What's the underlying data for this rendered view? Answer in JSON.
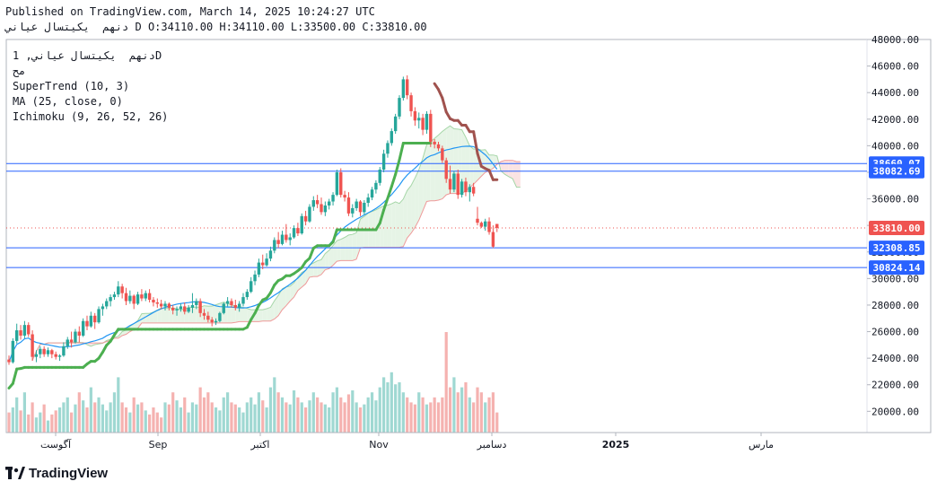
{
  "header": {
    "published": "Published on TradingView.com, March 14, 2025 10:24:27 UTC",
    "ohlc_line": "دنهم  يكيتسال عياني D O:34110.00 H:34110.00 L:33500.00 C:33810.00"
  },
  "legend": {
    "symbol_line": "دنهم  يكيتسال عياني, 1D",
    "line2": "مح",
    "supertrend": "SuperTrend (10, 3)",
    "ma": "MA (25, close, 0)",
    "ichimoku": "Ichimoku (9, 26, 52, 26)"
  },
  "footer": {
    "brand": "TradingView"
  },
  "colors": {
    "up": "#26a69a",
    "down": "#ef5350",
    "supertrend_up": "#4caf50",
    "supertrend_down": "#a0524e",
    "ma": "#2196f3",
    "hline": "#2962ff",
    "cloud": "#e6f4e6",
    "cloud_red": "#fbe3e3"
  },
  "chart_data": {
    "type": "candlestick",
    "y_axis": {
      "min": 18400,
      "max": 48000,
      "side": "right",
      "ticks": [
        "48000.00",
        "46000.00",
        "44000.00",
        "42000.00",
        "40000.00",
        "38000.00",
        "36000.00",
        "34000.00",
        "32000.00",
        "30000.00",
        "28000.00",
        "26000.00",
        "24000.00",
        "22000.00",
        "20000.00"
      ]
    },
    "x_axis": {
      "labels": [
        "آگوست",
        "Sep",
        "اکتبر",
        "Nov",
        "دسامبر",
        "2025",
        "مارس"
      ]
    },
    "price_labels": [
      {
        "value": 38660.07,
        "text": "38660.07",
        "style": "blue"
      },
      {
        "value": 38082.69,
        "text": "38082.69",
        "style": "blue"
      },
      {
        "value": 33810.0,
        "text": "33810.00",
        "style": "red"
      },
      {
        "value": 32308.85,
        "text": "32308.85",
        "style": "blue"
      },
      {
        "value": 30824.14,
        "text": "30824.14",
        "style": "blue"
      }
    ],
    "horizontal_lines": [
      38660.07,
      38082.69,
      32308.85,
      30824.14
    ],
    "dotted_line": 33810.0,
    "candles": [
      [
        23900,
        24200,
        23500,
        23700
      ],
      [
        23700,
        25500,
        23600,
        25300
      ],
      [
        25300,
        26600,
        25100,
        26100
      ],
      [
        26100,
        26500,
        25400,
        25700
      ],
      [
        25700,
        26800,
        25500,
        26500
      ],
      [
        26500,
        26700,
        25600,
        25800
      ],
      [
        25800,
        26100,
        23800,
        24100
      ],
      [
        24100,
        24600,
        23700,
        24300
      ],
      [
        24300,
        24900,
        24000,
        24700
      ],
      [
        24700,
        24900,
        24100,
        24300
      ],
      [
        24300,
        24800,
        24100,
        24600
      ],
      [
        24600,
        24700,
        24000,
        24300
      ],
      [
        24300,
        24500,
        23900,
        24100
      ],
      [
        24100,
        24300,
        23800,
        24200
      ],
      [
        24200,
        25200,
        24100,
        24900
      ],
      [
        24900,
        25600,
        24700,
        25400
      ],
      [
        25400,
        26000,
        24800,
        25200
      ],
      [
        25200,
        26200,
        25100,
        26000
      ],
      [
        26000,
        26400,
        25200,
        25700
      ],
      [
        25700,
        27000,
        25600,
        26800
      ],
      [
        26800,
        27200,
        26100,
        26400
      ],
      [
        26400,
        27500,
        26300,
        27200
      ],
      [
        27200,
        27400,
        26200,
        26700
      ],
      [
        26700,
        27900,
        26600,
        27700
      ],
      [
        27700,
        28100,
        27200,
        27900
      ],
      [
        27900,
        28500,
        27700,
        28300
      ],
      [
        28300,
        28800,
        27900,
        28600
      ],
      [
        28600,
        29000,
        28400,
        28800
      ],
      [
        28800,
        29800,
        28600,
        29400
      ],
      [
        29400,
        29600,
        28500,
        28900
      ],
      [
        28900,
        29300,
        28000,
        28300
      ],
      [
        28300,
        29100,
        28100,
        28700
      ],
      [
        28700,
        28800,
        27700,
        28100
      ],
      [
        28100,
        29000,
        28000,
        28800
      ],
      [
        28800,
        29200,
        28300,
        28500
      ],
      [
        28500,
        29100,
        28300,
        28900
      ],
      [
        28900,
        29200,
        28200,
        28400
      ],
      [
        28400,
        28600,
        27900,
        28200
      ],
      [
        28200,
        28500,
        27800,
        28100
      ],
      [
        28100,
        28400,
        27700,
        27900
      ],
      [
        27900,
        28300,
        27600,
        28100
      ],
      [
        28100,
        28200,
        27600,
        27800
      ],
      [
        27800,
        28000,
        27300,
        27600
      ],
      [
        27600,
        27900,
        27200,
        27700
      ],
      [
        27700,
        28100,
        27500,
        27900
      ],
      [
        27900,
        28200,
        27300,
        27500
      ],
      [
        27500,
        28000,
        27400,
        27800
      ],
      [
        27800,
        28900,
        27400,
        28000
      ],
      [
        28000,
        28500,
        27700,
        28300
      ],
      [
        28300,
        28500,
        27100,
        27400
      ],
      [
        27400,
        27700,
        26900,
        27200
      ],
      [
        27200,
        27500,
        26700,
        26900
      ],
      [
        26900,
        27100,
        26400,
        26700
      ],
      [
        26700,
        27000,
        26500,
        26800
      ],
      [
        26800,
        27500,
        26700,
        27400
      ],
      [
        27400,
        28200,
        27300,
        28100
      ],
      [
        28100,
        28600,
        27900,
        28300
      ],
      [
        28300,
        28500,
        27800,
        28000
      ],
      [
        28000,
        28400,
        27600,
        27800
      ],
      [
        27800,
        28300,
        27500,
        28100
      ],
      [
        28100,
        28900,
        27900,
        28600
      ],
      [
        28600,
        29200,
        28400,
        29000
      ],
      [
        29000,
        30100,
        28900,
        29800
      ],
      [
        29800,
        30600,
        29500,
        30300
      ],
      [
        30300,
        31500,
        30100,
        31200
      ],
      [
        31200,
        31800,
        30700,
        31000
      ],
      [
        31000,
        31900,
        30900,
        31500
      ],
      [
        31500,
        32400,
        31300,
        32100
      ],
      [
        32100,
        33100,
        31900,
        32900
      ],
      [
        32900,
        33500,
        32300,
        32600
      ],
      [
        32600,
        33600,
        32500,
        33300
      ],
      [
        33300,
        34100,
        32700,
        32900
      ],
      [
        32900,
        33400,
        32500,
        33100
      ],
      [
        33100,
        34000,
        33000,
        33800
      ],
      [
        33800,
        34200,
        33200,
        33400
      ],
      [
        33400,
        34900,
        33300,
        34700
      ],
      [
        34700,
        35100,
        34000,
        34300
      ],
      [
        34300,
        35600,
        34200,
        35400
      ],
      [
        35400,
        36200,
        35100,
        35900
      ],
      [
        35900,
        36300,
        35300,
        35600
      ],
      [
        35600,
        36100,
        34800,
        35000
      ],
      [
        35000,
        35800,
        34700,
        35500
      ],
      [
        35500,
        36000,
        35200,
        35800
      ],
      [
        35800,
        36500,
        35500,
        36300
      ],
      [
        36300,
        38200,
        36200,
        38000
      ],
      [
        38000,
        38300,
        36100,
        36300
      ],
      [
        36300,
        36600,
        35800,
        36100
      ],
      [
        36100,
        36500,
        34700,
        34900
      ],
      [
        34900,
        35600,
        34600,
        35300
      ],
      [
        35300,
        36000,
        35100,
        35800
      ],
      [
        35800,
        35900,
        34700,
        35000
      ],
      [
        35000,
        35900,
        34800,
        35700
      ],
      [
        35700,
        36400,
        35400,
        36100
      ],
      [
        36100,
        36900,
        35900,
        36700
      ],
      [
        36700,
        37400,
        36400,
        37200
      ],
      [
        37200,
        38400,
        37000,
        38200
      ],
      [
        38200,
        39700,
        38000,
        39400
      ],
      [
        39400,
        40400,
        39100,
        40200
      ],
      [
        40200,
        41300,
        40000,
        41100
      ],
      [
        41100,
        42400,
        40900,
        42200
      ],
      [
        42200,
        43800,
        42000,
        43600
      ],
      [
        43600,
        45200,
        43400,
        45000
      ],
      [
        45000,
        45300,
        43500,
        43800
      ],
      [
        43800,
        44000,
        42200,
        42600
      ],
      [
        42600,
        42900,
        41500,
        41900
      ],
      [
        41900,
        42500,
        41300,
        42100
      ],
      [
        42100,
        42400,
        40800,
        41200
      ],
      [
        41200,
        42600,
        40900,
        42400
      ],
      [
        42400,
        42700,
        39900,
        40300
      ],
      [
        40300,
        40500,
        39800,
        40100
      ],
      [
        40100,
        40300,
        39600,
        39800
      ],
      [
        39800,
        40000,
        38700,
        38900
      ],
      [
        38900,
        39100,
        37200,
        37500
      ],
      [
        37500,
        38500,
        36400,
        36700
      ],
      [
        36700,
        38100,
        36500,
        37900
      ],
      [
        37900,
        38200,
        36000,
        36300
      ],
      [
        36300,
        37500,
        36100,
        37300
      ],
      [
        37300,
        37600,
        36200,
        36500
      ],
      [
        36500,
        37100,
        35800,
        36900
      ],
      [
        36900,
        37200,
        36200,
        36400
      ],
      [
        34500,
        35400,
        34000,
        34200
      ],
      [
        34200,
        34300,
        33800,
        33900
      ],
      [
        33900,
        34500,
        33600,
        34300
      ],
      [
        34300,
        34600,
        33300,
        33500
      ],
      [
        33500,
        34000,
        32300,
        32400
      ],
      [
        34110,
        34110,
        33500,
        33810
      ]
    ],
    "volumes": [
      0.2,
      0.25,
      0.35,
      0.22,
      0.4,
      0.18,
      0.3,
      0.15,
      0.2,
      0.28,
      0.12,
      0.18,
      0.22,
      0.25,
      0.3,
      0.35,
      0.2,
      0.28,
      0.4,
      0.32,
      0.25,
      0.45,
      0.3,
      0.35,
      0.28,
      0.22,
      0.3,
      0.4,
      0.55,
      0.3,
      0.25,
      0.2,
      0.35,
      0.28,
      0.3,
      0.22,
      0.18,
      0.25,
      0.2,
      0.15,
      0.3,
      0.28,
      0.4,
      0.32,
      0.25,
      0.35,
      0.2,
      0.3,
      0.28,
      0.45,
      0.35,
      0.4,
      0.3,
      0.25,
      0.22,
      0.35,
      0.4,
      0.3,
      0.28,
      0.25,
      0.2,
      0.3,
      0.35,
      0.28,
      0.4,
      0.32,
      0.25,
      0.45,
      0.55,
      0.4,
      0.35,
      0.3,
      0.28,
      0.42,
      0.35,
      0.3,
      0.25,
      0.32,
      0.4,
      0.35,
      0.3,
      0.28,
      0.25,
      0.4,
      0.45,
      0.35,
      0.3,
      0.38,
      0.42,
      0.3,
      0.25,
      0.28,
      0.35,
      0.4,
      0.32,
      0.45,
      0.55,
      0.5,
      0.6,
      0.48,
      0.5,
      0.4,
      0.35,
      0.3,
      0.28,
      0.4,
      0.35,
      0.28,
      0.3,
      0.35,
      0.3,
      0.35,
      1.0,
      0.45,
      0.55,
      0.4,
      0.45,
      0.5,
      0.35,
      0.3,
      0.45,
      0.4,
      0.3,
      0.35,
      0.4,
      0.2,
      0.15
    ]
  }
}
